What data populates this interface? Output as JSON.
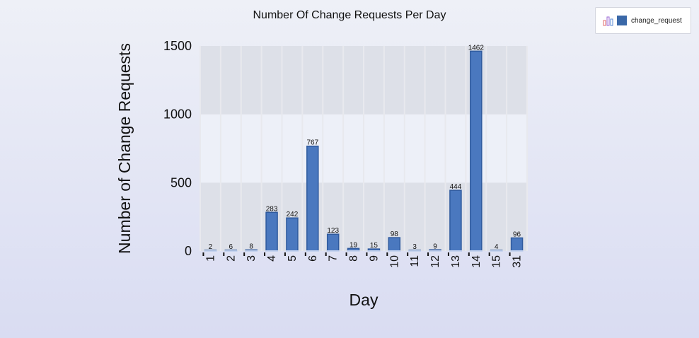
{
  "chart_data": {
    "type": "bar",
    "title": "Number Of Change Requests Per Day",
    "xlabel": "Day",
    "ylabel": "Number of Change Requests",
    "categories": [
      "1",
      "2",
      "3",
      "4",
      "5",
      "6",
      "7",
      "8",
      "9",
      "10",
      "11",
      "12",
      "13",
      "14",
      "15",
      "31"
    ],
    "series": [
      {
        "name": "change_request",
        "values": [
          2,
          6,
          8,
          283,
          242,
          767,
          123,
          19,
          15,
          98,
          3,
          9,
          444,
          1462,
          4,
          96
        ]
      }
    ],
    "ylim": [
      0,
      1500
    ],
    "yticks": [
      0,
      500,
      1000,
      1500
    ],
    "data_labels": true,
    "legend_position": "top-right",
    "colors": {
      "bar": "#4a78bf",
      "bar_edge": "#2f5a9e",
      "band_dark": "#dde0e8",
      "band_light": "#edf0f8",
      "swatch": "#3a68a8"
    },
    "legend_icon": "bar-chart-icon"
  }
}
